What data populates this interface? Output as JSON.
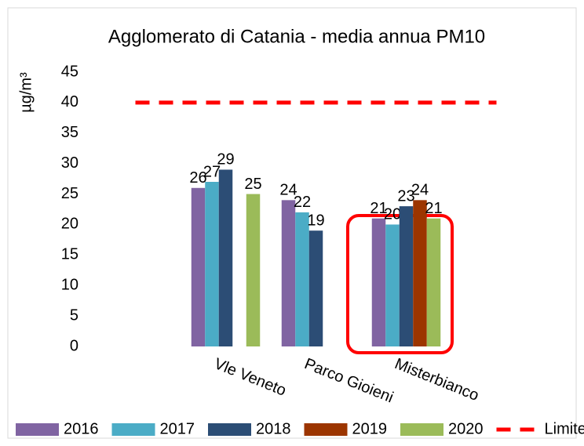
{
  "chart_data": {
    "type": "bar",
    "title": "Agglomerato di Catania - media annua PM10",
    "y_label": "µg/m³",
    "categories": [
      null,
      "Vle Veneto",
      "Parco Gioieni",
      "Misterbianco",
      null
    ],
    "series": [
      {
        "name": "2016",
        "color": "#8064a2",
        "values": [
          null,
          26,
          24,
          21,
          null
        ]
      },
      {
        "name": "2017",
        "color": "#4bacc6",
        "values": [
          null,
          27,
          22,
          20,
          null
        ]
      },
      {
        "name": "2018",
        "color": "#2c4d75",
        "values": [
          null,
          29,
          19,
          23,
          null
        ]
      },
      {
        "name": "2019",
        "color": "#9c3500",
        "values": [
          null,
          null,
          null,
          24,
          null
        ]
      },
      {
        "name": "2020",
        "color": "#9bbb59",
        "values": [
          null,
          25,
          null,
          21,
          null
        ]
      },
      {
        "name": "Limite",
        "color": "#ff0000",
        "type": "line",
        "values": [
          40,
          40,
          40,
          40,
          40
        ]
      }
    ],
    "ylim": [
      0,
      45
    ],
    "yticks": [
      0,
      5,
      10,
      15,
      20,
      25,
      30,
      35,
      40,
      45
    ],
    "legend": "bottom"
  }
}
